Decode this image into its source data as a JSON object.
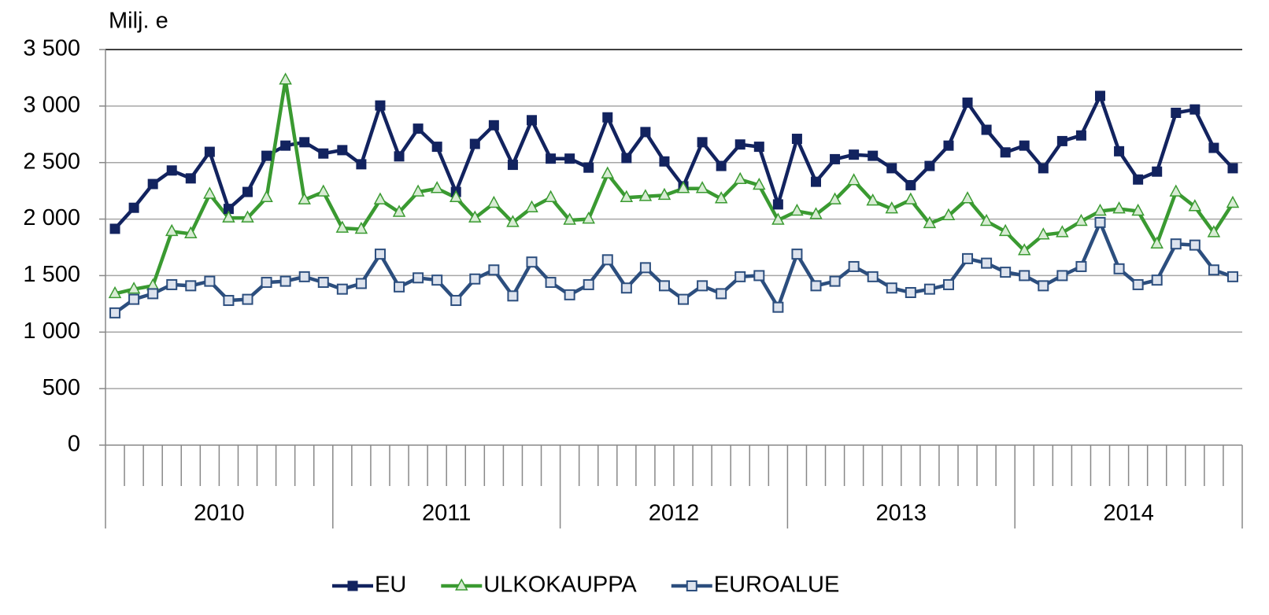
{
  "chart_data": {
    "type": "line",
    "y_axis_label": "Milj. e",
    "years": [
      "2010",
      "2011",
      "2012",
      "2013",
      "2014"
    ],
    "ylim": [
      0,
      3500
    ],
    "yticks": [
      0,
      500,
      {
        "value": 1000,
        "label": "1 000"
      },
      {
        "value": 1500,
        "label": "1 500"
      },
      {
        "value": 2000,
        "label": "2 000"
      },
      {
        "value": 2500,
        "label": "2 500"
      },
      {
        "value": 3000,
        "label": "3 000"
      },
      {
        "value": 3500,
        "label": "3 500"
      }
    ],
    "grid": true,
    "legend": "bottom",
    "series": [
      {
        "name": "EU",
        "color": "#12235f",
        "marker": "square-filled",
        "values": [
          1914,
          2100,
          2310,
          2430,
          2360,
          2595,
          2090,
          2240,
          2560,
          2650,
          2680,
          2580,
          2610,
          2485,
          3005,
          2555,
          2800,
          2640,
          2240,
          2665,
          2830,
          2480,
          2875,
          2535,
          2535,
          2455,
          2900,
          2540,
          2770,
          2510,
          2290,
          2680,
          2470,
          2660,
          2640,
          2130,
          2710,
          2330,
          2530,
          2570,
          2560,
          2450,
          2300,
          2470,
          2650,
          3030,
          2790,
          2590,
          2650,
          2450,
          2690,
          2740,
          3090,
          2600,
          2350,
          2420,
          2940,
          2970,
          2630,
          2450
        ]
      },
      {
        "name": "ULKOKAUPPA",
        "color": "#3a9a31",
        "marker": "triangle",
        "values": [
          1340,
          1380,
          1410,
          1890,
          1870,
          2220,
          2010,
          2010,
          2190,
          3230,
          2170,
          2240,
          1920,
          1910,
          2170,
          2060,
          2240,
          2270,
          2190,
          2010,
          2140,
          1970,
          2100,
          2190,
          1990,
          2000,
          2400,
          2190,
          2200,
          2210,
          2270,
          2270,
          2180,
          2350,
          2300,
          1990,
          2070,
          2040,
          2170,
          2340,
          2160,
          2090,
          2170,
          1960,
          2030,
          2180,
          1980,
          1890,
          1720,
          1860,
          1880,
          1980,
          2070,
          2090,
          2070,
          1780,
          2240,
          2110,
          1880,
          2140
        ]
      },
      {
        "name": "EUROALUE",
        "color": "#2c4e7e",
        "marker": "square-open",
        "values": [
          1170,
          1290,
          1340,
          1420,
          1410,
          1450,
          1280,
          1290,
          1440,
          1450,
          1490,
          1440,
          1380,
          1430,
          1690,
          1400,
          1480,
          1460,
          1280,
          1470,
          1550,
          1320,
          1620,
          1440,
          1330,
          1420,
          1640,
          1390,
          1570,
          1410,
          1290,
          1410,
          1340,
          1490,
          1500,
          1220,
          1690,
          1410,
          1450,
          1580,
          1490,
          1390,
          1350,
          1380,
          1420,
          1650,
          1610,
          1530,
          1500,
          1410,
          1500,
          1580,
          1970,
          1560,
          1420,
          1460,
          1780,
          1770,
          1550,
          1490
        ]
      }
    ]
  }
}
